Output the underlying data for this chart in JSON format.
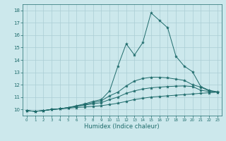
{
  "xlabel": "Humidex (Indice chaleur)",
  "bg_color": "#cce8ec",
  "grid_color": "#aacdd4",
  "line_color": "#1e6b6b",
  "xlim": [
    -0.5,
    23.5
  ],
  "ylim": [
    9.5,
    18.5
  ],
  "xticks": [
    0,
    1,
    2,
    3,
    4,
    5,
    6,
    7,
    8,
    9,
    10,
    11,
    12,
    13,
    14,
    15,
    16,
    17,
    18,
    19,
    20,
    21,
    22,
    23
  ],
  "yticks": [
    10,
    11,
    12,
    13,
    14,
    15,
    16,
    17,
    18
  ],
  "s1": [
    9.9,
    9.85,
    9.9,
    10.0,
    10.05,
    10.1,
    10.15,
    10.2,
    10.25,
    10.3,
    10.4,
    10.5,
    10.65,
    10.8,
    10.9,
    11.0,
    11.05,
    11.1,
    11.15,
    11.2,
    11.25,
    11.3,
    11.35,
    11.4
  ],
  "s2": [
    9.9,
    9.85,
    9.9,
    10.0,
    10.05,
    10.15,
    10.25,
    10.35,
    10.45,
    10.55,
    10.8,
    11.0,
    11.3,
    11.5,
    11.65,
    11.75,
    11.8,
    11.85,
    11.88,
    11.9,
    11.85,
    11.55,
    11.45,
    11.4
  ],
  "s3": [
    9.9,
    9.85,
    9.9,
    10.0,
    10.05,
    10.15,
    10.25,
    10.4,
    10.55,
    10.7,
    11.1,
    11.4,
    11.9,
    12.3,
    12.5,
    12.6,
    12.6,
    12.55,
    12.45,
    12.35,
    12.0,
    11.8,
    11.5,
    11.4
  ],
  "s4": [
    9.9,
    9.85,
    9.9,
    10.0,
    10.05,
    10.15,
    10.3,
    10.45,
    10.65,
    10.8,
    11.5,
    13.5,
    15.3,
    14.4,
    15.4,
    17.8,
    17.2,
    16.6,
    14.3,
    13.5,
    13.05,
    11.85,
    11.55,
    11.42
  ]
}
